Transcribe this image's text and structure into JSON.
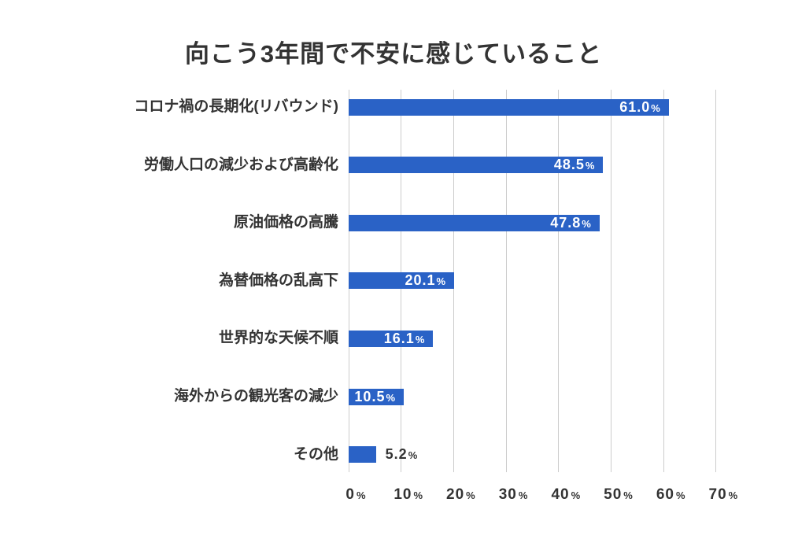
{
  "title": "向こう3年間で不安に感じていること",
  "colors": {
    "bar": "#2a62c6",
    "grid": "#cccccc",
    "text": "#333333",
    "value_inside": "#ffffff"
  },
  "chart_data": {
    "type": "bar",
    "orientation": "horizontal",
    "title": "向こう3年間で不安に感じていること",
    "categories": [
      "コロナ禍の長期化(リバウンド)",
      "労働人口の減少および高齢化",
      "原油価格の高騰",
      "為替価格の乱高下",
      "世界的な天候不順",
      "海外からの観光客の減少",
      "その他"
    ],
    "values": [
      61.0,
      48.5,
      47.8,
      20.1,
      16.1,
      10.5,
      5.2
    ],
    "value_labels": [
      "61.0",
      "48.5",
      "47.8",
      "20.1",
      "16.1",
      "10.5",
      "5.2"
    ],
    "unit": "%",
    "xlim": [
      0,
      70
    ],
    "x_ticks": [
      "0",
      "10",
      "20",
      "30",
      "40",
      "50",
      "60",
      "70"
    ],
    "grid": true,
    "legend": false
  }
}
